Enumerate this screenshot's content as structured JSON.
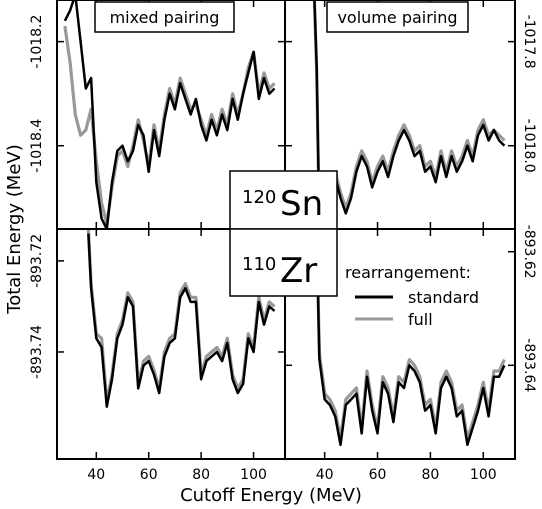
{
  "chart_data": {
    "type": "line",
    "xlabel": "Cutoff Energy (MeV)",
    "ylabel": "Total Energy (MeV)",
    "xlim": [
      25,
      112
    ],
    "xticks": [
      "40",
      "60",
      "80",
      "100"
    ],
    "legend": {
      "title": "rearrangement:",
      "placement": "inside lower-right panel, top",
      "entries": [
        {
          "name": "standard",
          "color": "#000000"
        },
        {
          "name": "full",
          "color": "#999999"
        }
      ]
    },
    "panels": [
      {
        "id": "top-left",
        "title": "mixed pairing",
        "nucleus": {
          "mass": "120",
          "symbol": "Sn"
        },
        "ylim": [
          -1018.56,
          -1018.12
        ],
        "yticks": [
          "-1018.2",
          "-1018.4"
        ],
        "tick_side": "left",
        "x": [
          28,
          30,
          32,
          34,
          36,
          38,
          40,
          42,
          44,
          46,
          48,
          50,
          52,
          54,
          56,
          58,
          60,
          62,
          64,
          66,
          68,
          70,
          72,
          74,
          76,
          78,
          80,
          82,
          84,
          86,
          88,
          90,
          92,
          94,
          96,
          98,
          100,
          102,
          104,
          106,
          108
        ],
        "series": [
          {
            "name": "standard",
            "color": "#000000",
            "values": [
              -1018.16,
              -1018.14,
              -1018.11,
              -1018.2,
              -1018.29,
              -1018.27,
              -1018.47,
              -1018.54,
              -1018.56,
              -1018.47,
              -1018.41,
              -1018.4,
              -1018.43,
              -1018.41,
              -1018.36,
              -1018.38,
              -1018.45,
              -1018.37,
              -1018.42,
              -1018.35,
              -1018.3,
              -1018.33,
              -1018.28,
              -1018.31,
              -1018.34,
              -1018.31,
              -1018.36,
              -1018.39,
              -1018.35,
              -1018.38,
              -1018.34,
              -1018.37,
              -1018.31,
              -1018.35,
              -1018.3,
              -1018.26,
              -1018.22,
              -1018.31,
              -1018.27,
              -1018.3,
              -1018.29
            ]
          },
          {
            "name": "full",
            "color": "#999999",
            "values": [
              -1018.17,
              -1018.24,
              -1018.34,
              -1018.38,
              -1018.37,
              -1018.33,
              -1018.43,
              -1018.51,
              -1018.55,
              -1018.48,
              -1018.42,
              -1018.41,
              -1018.44,
              -1018.4,
              -1018.35,
              -1018.39,
              -1018.44,
              -1018.36,
              -1018.41,
              -1018.34,
              -1018.29,
              -1018.32,
              -1018.27,
              -1018.3,
              -1018.33,
              -1018.32,
              -1018.35,
              -1018.38,
              -1018.34,
              -1018.37,
              -1018.33,
              -1018.36,
              -1018.3,
              -1018.34,
              -1018.3,
              -1018.25,
              -1018.22,
              -1018.3,
              -1018.26,
              -1018.29,
              -1018.28
            ]
          }
        ]
      },
      {
        "id": "top-right",
        "title": "volume pairing",
        "nucleus": null,
        "ylim": [
          -1018.16,
          -1017.72
        ],
        "yticks": [
          "-1017.8",
          "-1018.0"
        ],
        "tick_side": "right",
        "x": [
          36,
          37,
          38,
          40,
          42,
          44,
          46,
          48,
          50,
          52,
          54,
          56,
          58,
          60,
          62,
          64,
          66,
          68,
          70,
          72,
          74,
          76,
          78,
          80,
          82,
          84,
          86,
          88,
          90,
          92,
          94,
          96,
          98,
          100,
          102,
          104,
          106,
          108
        ],
        "series": [
          {
            "name": "standard",
            "color": "#000000",
            "values": [
              -1017.7,
              -1017.85,
              -1018.16,
              -1018.15,
              -1018.12,
              -1018.06,
              -1018.1,
              -1018.13,
              -1018.1,
              -1018.05,
              -1018.02,
              -1018.04,
              -1018.08,
              -1018.05,
              -1018.03,
              -1018.06,
              -1018.02,
              -1017.99,
              -1017.97,
              -1017.99,
              -1018.02,
              -1018.01,
              -1018.05,
              -1018.04,
              -1018.07,
              -1018.02,
              -1018.06,
              -1018.02,
              -1018.05,
              -1018.03,
              -1018.0,
              -1018.03,
              -1017.98,
              -1017.96,
              -1017.99,
              -1017.97,
              -1017.99,
              -1018.0
            ]
          },
          {
            "name": "full",
            "color": "#999999",
            "values": [
              -1017.7,
              -1017.86,
              -1018.16,
              -1018.14,
              -1018.11,
              -1018.05,
              -1018.09,
              -1018.12,
              -1018.09,
              -1018.04,
              -1018.01,
              -1018.03,
              -1018.07,
              -1018.04,
              -1018.02,
              -1018.05,
              -1018.01,
              -1017.98,
              -1017.96,
              -1017.98,
              -1018.01,
              -1018.0,
              -1018.04,
              -1018.03,
              -1018.06,
              -1018.01,
              -1018.05,
              -1018.01,
              -1018.04,
              -1018.02,
              -1017.99,
              -1018.02,
              -1017.97,
              -1017.95,
              -1017.98,
              -1017.97,
              -1017.98,
              -1017.99
            ]
          }
        ]
      },
      {
        "id": "bottom-left",
        "title": "",
        "nucleus": {
          "mass": "110",
          "symbol": "Zr"
        },
        "ylim": [
          -893.7635,
          -893.713
        ],
        "yticks": [
          "-893.72",
          "-893.74"
        ],
        "tick_side": "left",
        "x": [
          37,
          38,
          40,
          42,
          44,
          46,
          48,
          50,
          52,
          54,
          56,
          58,
          60,
          62,
          64,
          66,
          68,
          70,
          72,
          74,
          76,
          78,
          80,
          82,
          84,
          86,
          88,
          90,
          92,
          94,
          96,
          98,
          100,
          102,
          104,
          106,
          108
        ],
        "series": [
          {
            "name": "standard",
            "color": "#000000",
            "values": [
              -893.714,
              -893.726,
              -893.737,
              -893.739,
              -893.752,
              -893.746,
              -893.737,
              -893.734,
              -893.728,
              -893.73,
              -893.748,
              -893.743,
              -893.742,
              -893.745,
              -893.749,
              -893.741,
              -893.738,
              -893.737,
              -893.728,
              -893.726,
              -893.729,
              -893.729,
              -893.746,
              -893.742,
              -893.741,
              -893.74,
              -893.742,
              -893.738,
              -893.746,
              -893.749,
              -893.747,
              -893.737,
              -893.74,
              -893.729,
              -893.734,
              -893.73,
              -893.731
            ]
          },
          {
            "name": "full",
            "color": "#999999",
            "values": [
              -893.713,
              -893.725,
              -893.736,
              -893.737,
              -893.751,
              -893.745,
              -893.736,
              -893.733,
              -893.727,
              -893.729,
              -893.747,
              -893.742,
              -893.741,
              -893.744,
              -893.748,
              -893.74,
              -893.737,
              -893.736,
              -893.727,
              -893.725,
              -893.728,
              -893.728,
              -893.745,
              -893.741,
              -893.74,
              -893.739,
              -893.741,
              -893.737,
              -893.745,
              -893.748,
              -893.746,
              -893.736,
              -893.739,
              -893.728,
              -893.733,
              -893.729,
              -893.73
            ]
          }
        ]
      },
      {
        "id": "bottom-right",
        "title": "",
        "nucleus": null,
        "ylim": [
          -893.6565,
          -893.616
        ],
        "yticks": [
          "-893.62",
          "-893.64"
        ],
        "tick_side": "right",
        "x": [
          37,
          38,
          40,
          42,
          44,
          46,
          48,
          50,
          52,
          54,
          56,
          58,
          60,
          62,
          64,
          66,
          68,
          70,
          72,
          74,
          76,
          78,
          80,
          82,
          84,
          86,
          88,
          90,
          92,
          94,
          96,
          98,
          100,
          102,
          104,
          106,
          108
        ],
        "series": [
          {
            "name": "standard",
            "color": "#000000",
            "values": [
              -893.617,
              -893.639,
              -893.646,
              -893.647,
              -893.649,
              -893.654,
              -893.647,
              -893.646,
              -893.645,
              -893.652,
              -893.642,
              -893.648,
              -893.652,
              -893.643,
              -893.645,
              -893.65,
              -893.643,
              -893.644,
              -893.64,
              -893.641,
              -893.643,
              -893.648,
              -893.647,
              -893.652,
              -893.644,
              -893.642,
              -893.644,
              -893.649,
              -893.648,
              -893.654,
              -893.651,
              -893.648,
              -893.644,
              -893.649,
              -893.642,
              -893.642,
              -893.64
            ]
          },
          {
            "name": "full",
            "color": "#999999",
            "values": [
              -893.616,
              -893.638,
              -893.645,
              -893.646,
              -893.648,
              -893.653,
              -893.646,
              -893.645,
              -893.644,
              -893.651,
              -893.641,
              -893.647,
              -893.651,
              -893.642,
              -893.644,
              -893.649,
              -893.642,
              -893.643,
              -893.639,
              -893.64,
              -893.642,
              -893.647,
              -893.646,
              -893.651,
              -893.643,
              -893.641,
              -893.643,
              -893.648,
              -893.647,
              -893.653,
              -893.65,
              -893.647,
              -893.643,
              -893.648,
              -893.641,
              -893.641,
              -893.639
            ]
          }
        ]
      }
    ]
  }
}
